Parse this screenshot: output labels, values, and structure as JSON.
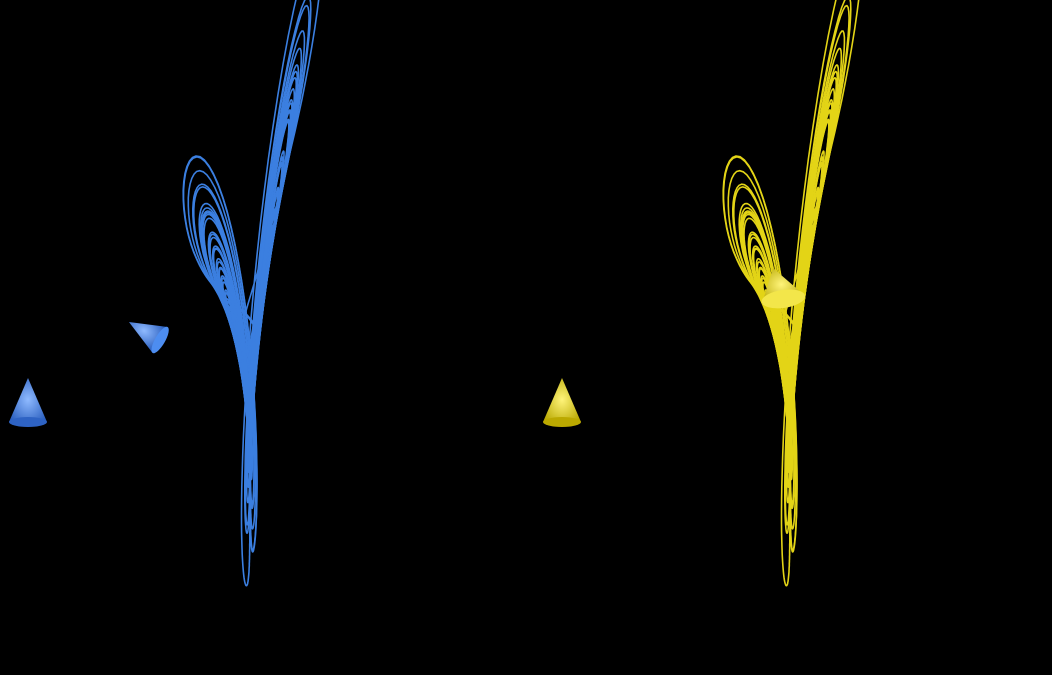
{
  "scene": {
    "background": "#000000",
    "trajectories": [
      {
        "id": "blue",
        "color": "#3b7fe0",
        "glow": "#2f6fd6",
        "icon": "cone-arrow"
      },
      {
        "id": "yellow",
        "color": "#e3d418",
        "glow": "#c9b80a",
        "icon": "cone-arrow"
      }
    ]
  }
}
